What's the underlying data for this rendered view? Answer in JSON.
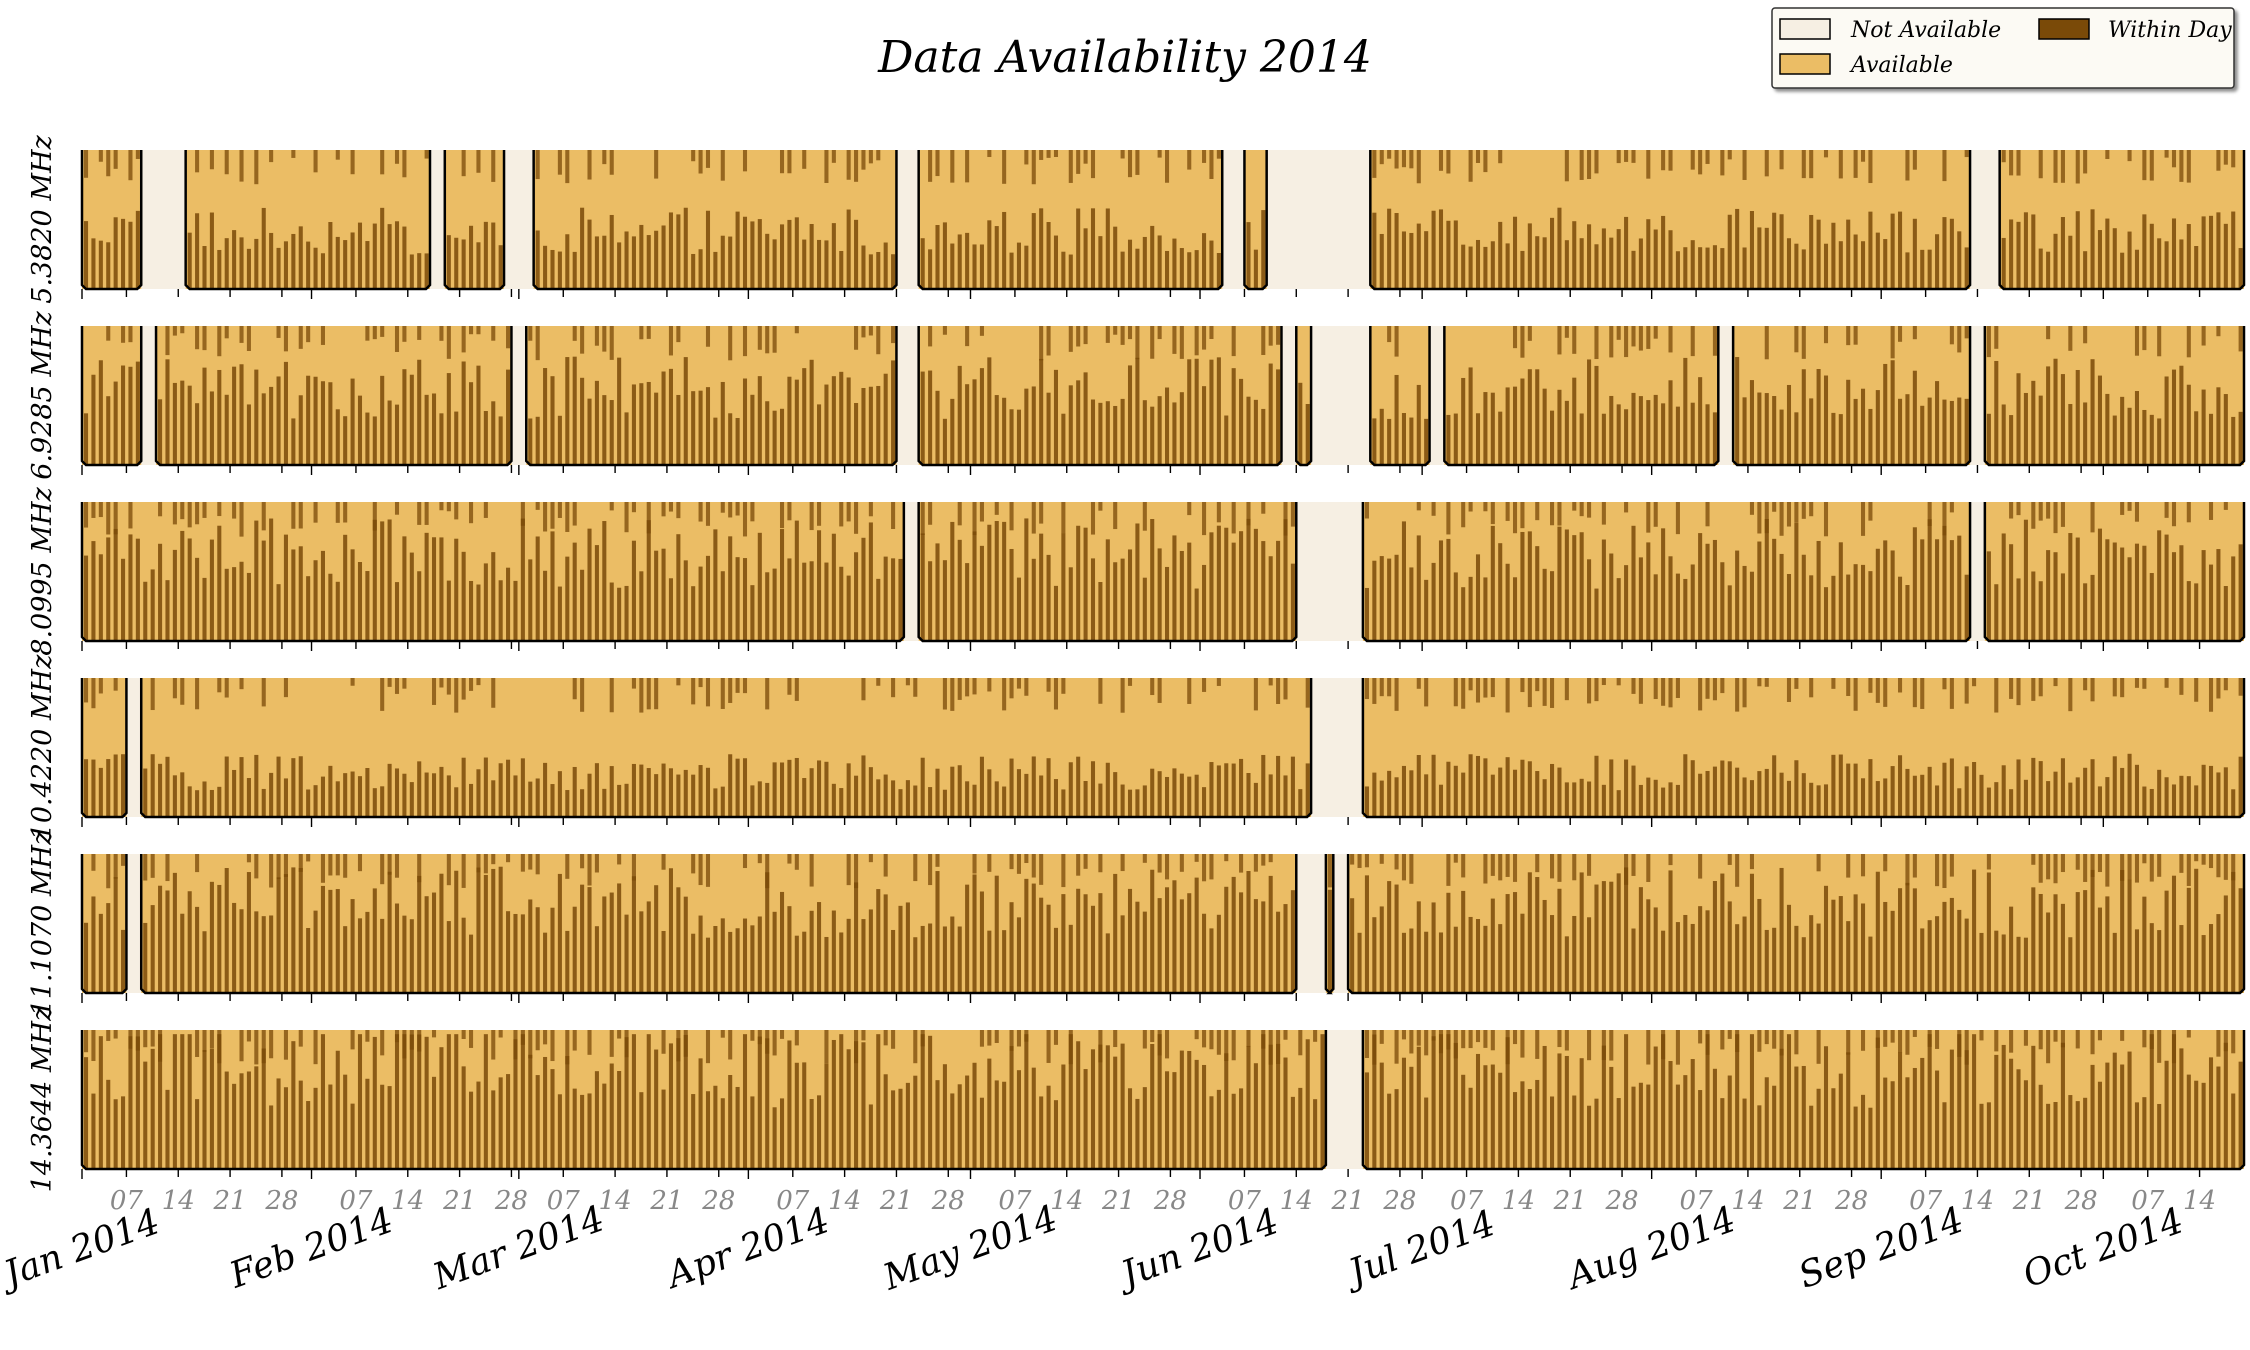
{
  "chart_data": {
    "type": "heatmap",
    "title": "Data Availability 2014",
    "date_range": [
      "2014-01-01",
      "2014-10-20"
    ],
    "colors": {
      "not_available": "#f6efe3",
      "available": "#ebbd65",
      "within_day": "#7a4a08",
      "outline": "#000000"
    },
    "legend": {
      "placement": "top-right",
      "entries": [
        {
          "label": "Not Available",
          "key": "not_available"
        },
        {
          "label": "Within Day",
          "key": "within_day"
        },
        {
          "label": "Available",
          "key": "available"
        }
      ]
    },
    "month_ticks": [
      {
        "label": "Jan 2014",
        "date": "2014-01-01"
      },
      {
        "label": "Feb 2014",
        "date": "2014-02-01"
      },
      {
        "label": "Mar 2014",
        "date": "2014-03-01"
      },
      {
        "label": "Apr 2014",
        "date": "2014-04-01"
      },
      {
        "label": "May 2014",
        "date": "2014-05-01"
      },
      {
        "label": "Jun 2014",
        "date": "2014-06-01"
      },
      {
        "label": "Jul 2014",
        "date": "2014-07-01"
      },
      {
        "label": "Aug 2014",
        "date": "2014-08-01"
      },
      {
        "label": "Sep 2014",
        "date": "2014-09-01"
      },
      {
        "label": "Oct 2014",
        "date": "2014-10-01"
      }
    ],
    "day_ticks": [
      {
        "label": "07",
        "date": "2014-01-07"
      },
      {
        "label": "14",
        "date": "2014-01-14"
      },
      {
        "label": "21",
        "date": "2014-01-21"
      },
      {
        "label": "28",
        "date": "2014-01-28"
      },
      {
        "label": "07",
        "date": "2014-02-07"
      },
      {
        "label": "14",
        "date": "2014-02-14"
      },
      {
        "label": "21",
        "date": "2014-02-21"
      },
      {
        "label": "28",
        "date": "2014-02-28"
      },
      {
        "label": "07",
        "date": "2014-03-07"
      },
      {
        "label": "14",
        "date": "2014-03-14"
      },
      {
        "label": "21",
        "date": "2014-03-21"
      },
      {
        "label": "28",
        "date": "2014-03-28"
      },
      {
        "label": "07",
        "date": "2014-04-07"
      },
      {
        "label": "14",
        "date": "2014-04-14"
      },
      {
        "label": "21",
        "date": "2014-04-21"
      },
      {
        "label": "28",
        "date": "2014-04-28"
      },
      {
        "label": "07",
        "date": "2014-05-07"
      },
      {
        "label": "14",
        "date": "2014-05-14"
      },
      {
        "label": "21",
        "date": "2014-05-21"
      },
      {
        "label": "28",
        "date": "2014-05-28"
      },
      {
        "label": "07",
        "date": "2014-06-07"
      },
      {
        "label": "14",
        "date": "2014-06-14"
      },
      {
        "label": "21",
        "date": "2014-06-21"
      },
      {
        "label": "28",
        "date": "2014-06-28"
      },
      {
        "label": "07",
        "date": "2014-07-07"
      },
      {
        "label": "14",
        "date": "2014-07-14"
      },
      {
        "label": "21",
        "date": "2014-07-21"
      },
      {
        "label": "28",
        "date": "2014-07-28"
      },
      {
        "label": "07",
        "date": "2014-08-07"
      },
      {
        "label": "14",
        "date": "2014-08-14"
      },
      {
        "label": "21",
        "date": "2014-08-21"
      },
      {
        "label": "28",
        "date": "2014-08-28"
      },
      {
        "label": "07",
        "date": "2014-09-07"
      },
      {
        "label": "14",
        "date": "2014-09-14"
      },
      {
        "label": "21",
        "date": "2014-09-21"
      },
      {
        "label": "28",
        "date": "2014-09-28"
      },
      {
        "label": "07",
        "date": "2014-10-07"
      },
      {
        "label": "14",
        "date": "2014-10-14"
      }
    ],
    "series": [
      {
        "name": "5.3820 MHz",
        "level": 0.45,
        "segments": [
          [
            "2014-01-01",
            "2014-01-09"
          ],
          [
            "2014-01-15",
            "2014-02-17"
          ],
          [
            "2014-02-19",
            "2014-02-27"
          ],
          [
            "2014-03-03",
            "2014-04-21"
          ],
          [
            "2014-04-24",
            "2014-06-04"
          ],
          [
            "2014-06-07",
            "2014-06-10"
          ],
          [
            "2014-06-24",
            "2014-09-13"
          ],
          [
            "2014-09-17",
            "2014-10-20"
          ]
        ],
        "gaps": [
          [
            "2014-01-09",
            "2014-01-15"
          ],
          [
            "2014-02-17",
            "2014-02-19"
          ],
          [
            "2014-02-27",
            "2014-03-03"
          ],
          [
            "2014-04-21",
            "2014-04-24"
          ],
          [
            "2014-06-04",
            "2014-06-07"
          ],
          [
            "2014-06-10",
            "2014-06-24"
          ],
          [
            "2014-09-13",
            "2014-09-17"
          ]
        ]
      },
      {
        "name": "6.9285 MHz",
        "level": 0.6,
        "segments": [
          [
            "2014-01-01",
            "2014-01-09"
          ],
          [
            "2014-01-11",
            "2014-02-28"
          ],
          [
            "2014-03-02",
            "2014-04-21"
          ],
          [
            "2014-04-24",
            "2014-06-12"
          ],
          [
            "2014-06-14",
            "2014-06-16"
          ],
          [
            "2014-06-24",
            "2014-07-02"
          ],
          [
            "2014-07-04",
            "2014-08-10"
          ],
          [
            "2014-08-12",
            "2014-09-13"
          ],
          [
            "2014-09-15",
            "2014-10-20"
          ]
        ],
        "gaps": [
          [
            "2014-01-09",
            "2014-01-11"
          ],
          [
            "2014-02-28",
            "2014-03-02"
          ],
          [
            "2014-04-21",
            "2014-04-24"
          ],
          [
            "2014-06-12",
            "2014-06-14"
          ],
          [
            "2014-06-16",
            "2014-06-24"
          ],
          [
            "2014-07-02",
            "2014-07-04"
          ],
          [
            "2014-08-10",
            "2014-08-12"
          ],
          [
            "2014-09-13",
            "2014-09-15"
          ]
        ]
      },
      {
        "name": "8.0995 MHz",
        "level": 0.68,
        "segments": [
          [
            "2014-01-01",
            "2014-04-22"
          ],
          [
            "2014-04-24",
            "2014-06-14"
          ],
          [
            "2014-06-23",
            "2014-09-13"
          ],
          [
            "2014-09-15",
            "2014-10-20"
          ]
        ],
        "gaps": [
          [
            "2014-04-22",
            "2014-04-24"
          ],
          [
            "2014-06-14",
            "2014-06-23"
          ],
          [
            "2014-09-13",
            "2014-09-15"
          ]
        ]
      },
      {
        "name": "10.4220 MHz",
        "level": 0.35,
        "segments": [
          [
            "2014-01-01",
            "2014-01-07"
          ],
          [
            "2014-01-09",
            "2014-06-16"
          ],
          [
            "2014-06-23",
            "2014-10-20"
          ]
        ],
        "gaps": [
          [
            "2014-01-07",
            "2014-01-09"
          ],
          [
            "2014-06-16",
            "2014-06-23"
          ]
        ]
      },
      {
        "name": "11.1070 MHz",
        "level": 0.7,
        "segments": [
          [
            "2014-01-01",
            "2014-01-07"
          ],
          [
            "2014-01-09",
            "2014-06-14"
          ],
          [
            "2014-06-18",
            "2014-06-19"
          ],
          [
            "2014-06-21",
            "2014-10-20"
          ]
        ],
        "gaps": [
          [
            "2014-01-07",
            "2014-01-09"
          ],
          [
            "2014-06-14",
            "2014-06-18"
          ],
          [
            "2014-06-19",
            "2014-06-21"
          ]
        ]
      },
      {
        "name": "14.3644 MHz",
        "level": 0.8,
        "segments": [
          [
            "2014-01-01",
            "2014-06-18"
          ],
          [
            "2014-06-23",
            "2014-10-20"
          ]
        ],
        "gaps": [
          [
            "2014-06-18",
            "2014-06-23"
          ]
        ]
      }
    ]
  }
}
